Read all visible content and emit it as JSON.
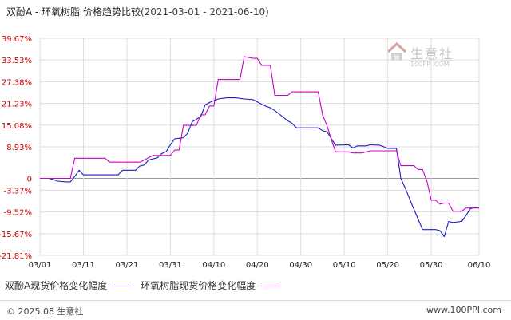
{
  "title": {
    "main": "双酚A - 环氧树脂 价格趋势比较",
    "range": "(2021-03-01 - 2021-06-10)"
  },
  "watermark": {
    "name": "生意社",
    "url": "100PPI.COM"
  },
  "footer": {
    "copyright": "© 2025.08 生意社",
    "site": "www.100PPI.com"
  },
  "colors": {
    "series1": "#1a1acc",
    "series2": "#cc00cc",
    "axis_label": "#cc0000",
    "grid": "#dddddd",
    "zero_line": "#999999"
  },
  "chart_data": {
    "type": "line",
    "ylabel_ticks": [
      "39.67%",
      "33.53%",
      "27.38%",
      "21.23%",
      "15.08%",
      "8.93%",
      "0",
      "-3.37%",
      "-9.52%",
      "-15.67%",
      "-21.81%"
    ],
    "ytick_values": [
      39.67,
      33.53,
      27.38,
      21.23,
      15.08,
      8.93,
      0,
      -3.37,
      -9.52,
      -15.67,
      -21.81
    ],
    "ylim": [
      -21.81,
      39.67
    ],
    "xticks": [
      "03/01",
      "03/11",
      "03/21",
      "03/31",
      "04/10",
      "04/20",
      "04/30",
      "05/10",
      "05/20",
      "05/30",
      "06/10"
    ],
    "xtick_days": [
      0,
      10,
      20,
      30,
      40,
      50,
      60,
      70,
      80,
      90,
      101
    ],
    "xlim_days": [
      0,
      101
    ],
    "grid": true,
    "legend_position": "bottom",
    "series": [
      {
        "name": "双酚A现货价格变化幅度",
        "color": "#1a1acc",
        "points": [
          [
            0,
            0
          ],
          [
            2,
            0
          ],
          [
            3,
            -0.3
          ],
          [
            4,
            -0.8
          ],
          [
            6,
            -1
          ],
          [
            7,
            -1
          ],
          [
            8,
            0.5
          ],
          [
            9,
            2.3
          ],
          [
            10,
            1
          ],
          [
            13,
            1
          ],
          [
            16,
            1
          ],
          [
            18,
            1
          ],
          [
            19,
            2.3
          ],
          [
            22,
            2.3
          ],
          [
            23,
            3.5
          ],
          [
            24,
            3.8
          ],
          [
            25,
            5.2
          ],
          [
            27,
            5.8
          ],
          [
            28,
            7
          ],
          [
            29,
            7.5
          ],
          [
            30,
            9.5
          ],
          [
            31,
            11.2
          ],
          [
            33,
            11.5
          ],
          [
            34,
            12.8
          ],
          [
            35,
            16
          ],
          [
            37,
            17.5
          ],
          [
            38,
            20.8
          ],
          [
            39,
            21.5
          ],
          [
            41,
            22.5
          ],
          [
            43,
            22.8
          ],
          [
            45,
            22.8
          ],
          [
            47,
            22.5
          ],
          [
            49,
            22.3
          ],
          [
            51,
            21
          ],
          [
            52,
            20.4
          ],
          [
            53,
            20
          ],
          [
            54,
            19.2
          ],
          [
            56,
            17.3
          ],
          [
            57,
            16.3
          ],
          [
            58,
            15.6
          ],
          [
            59,
            14.3
          ],
          [
            62,
            14.3
          ],
          [
            64,
            14.3
          ],
          [
            65,
            13.5
          ],
          [
            66,
            13.2
          ],
          [
            67,
            11.3
          ],
          [
            68,
            9.4
          ],
          [
            71,
            9.5
          ],
          [
            72,
            8.6
          ],
          [
            73,
            9.2
          ],
          [
            75,
            9.2
          ],
          [
            76,
            9.5
          ],
          [
            78,
            9.4
          ],
          [
            79,
            9
          ],
          [
            80,
            8.5
          ],
          [
            81,
            8.5
          ],
          [
            82,
            8.5
          ],
          [
            83,
            0
          ],
          [
            84,
            -2.7
          ],
          [
            86,
            -8.7
          ],
          [
            88,
            -14.5
          ],
          [
            91,
            -14.5
          ],
          [
            92,
            -14.8
          ],
          [
            93,
            -16.5
          ],
          [
            94,
            -12.2
          ],
          [
            95,
            -12.5
          ],
          [
            97,
            -12.2
          ],
          [
            98,
            -10.5
          ],
          [
            99,
            -8.6
          ],
          [
            100,
            -8.3
          ],
          [
            101,
            -8.4
          ]
        ]
      },
      {
        "name": "环氧树脂现货价格变化幅度",
        "color": "#cc00cc",
        "points": [
          [
            0,
            0
          ],
          [
            7,
            0
          ],
          [
            8,
            5.7
          ],
          [
            15,
            5.7
          ],
          [
            16,
            4.6
          ],
          [
            22,
            4.6
          ],
          [
            23,
            4.6
          ],
          [
            26,
            6.5
          ],
          [
            30,
            6.5
          ],
          [
            31,
            8
          ],
          [
            32,
            8
          ],
          [
            33,
            15
          ],
          [
            36,
            15
          ],
          [
            37,
            18
          ],
          [
            38,
            18
          ],
          [
            39,
            20.5
          ],
          [
            40,
            20.5
          ],
          [
            41,
            28
          ],
          [
            46,
            28
          ],
          [
            47,
            34.5
          ],
          [
            49,
            34
          ],
          [
            50,
            34
          ],
          [
            51,
            32
          ],
          [
            53,
            32
          ],
          [
            54,
            23.5
          ],
          [
            57,
            23.5
          ],
          [
            58,
            24.5
          ],
          [
            64,
            24.5
          ],
          [
            65,
            18
          ],
          [
            66,
            15
          ],
          [
            67,
            11
          ],
          [
            68,
            7.5
          ],
          [
            71,
            7.5
          ],
          [
            72,
            7.2
          ],
          [
            74,
            7.2
          ],
          [
            76,
            7.8
          ],
          [
            82,
            7.8
          ],
          [
            83,
            3.6
          ],
          [
            86,
            3.6
          ],
          [
            87,
            2.5
          ],
          [
            88,
            2.5
          ],
          [
            89,
            -0.8
          ],
          [
            90,
            -6.2
          ],
          [
            91,
            -6.2
          ],
          [
            92,
            -7.3
          ],
          [
            93,
            -7
          ],
          [
            94,
            -7
          ],
          [
            95,
            -9.3
          ],
          [
            97,
            -9.3
          ],
          [
            98,
            -8.4
          ],
          [
            101,
            -8.4
          ]
        ]
      }
    ]
  }
}
